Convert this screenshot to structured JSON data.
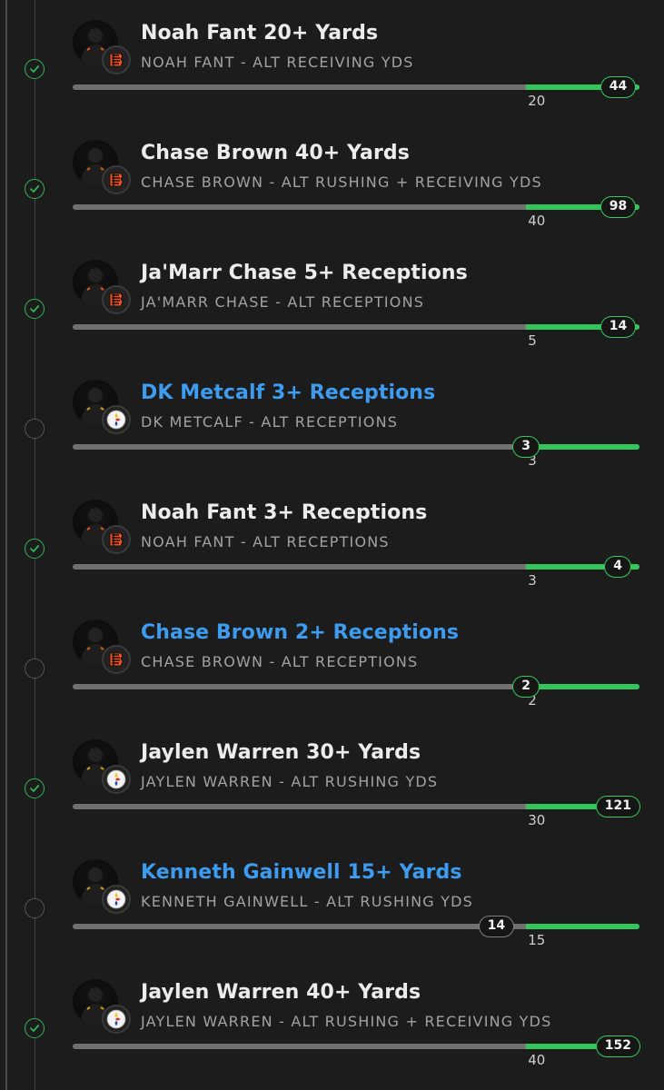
{
  "colors": {
    "won": "#2fb552",
    "pending_title": "#3d9bf0",
    "progress": "#32c55a",
    "track": "#707070"
  },
  "legs": [
    {
      "title": "Noah Fant 20+ Yards",
      "subtitle": "NOAH FANT - ALT RECEIVING YDS",
      "team": "bengals",
      "status": "won",
      "target": "20",
      "actual": "44",
      "title_style": "settled",
      "badge_pos": 0.962,
      "target_pos": 0.8
    },
    {
      "title": "Chase Brown 40+ Yards",
      "subtitle": "CHASE BROWN - ALT RUSHING + RECEIVING YDS",
      "team": "bengals",
      "status": "won",
      "target": "40",
      "actual": "98",
      "title_style": "settled",
      "badge_pos": 0.962,
      "target_pos": 0.8
    },
    {
      "title": "Ja'Marr Chase 5+ Receptions",
      "subtitle": "JA'MARR CHASE - ALT RECEPTIONS",
      "team": "bengals",
      "status": "won",
      "target": "5",
      "actual": "14",
      "title_style": "settled",
      "badge_pos": 0.962,
      "target_pos": 0.8
    },
    {
      "title": "DK Metcalf 3+ Receptions",
      "subtitle": "DK METCALF - ALT RECEPTIONS",
      "team": "steelers",
      "status": "open",
      "target": "3",
      "actual": "3",
      "title_style": "pending",
      "badge_pos": 0.8,
      "target_pos": 0.8
    },
    {
      "title": "Noah Fant 3+ Receptions",
      "subtitle": "NOAH FANT - ALT RECEPTIONS",
      "team": "bengals",
      "status": "won",
      "target": "3",
      "actual": "4",
      "title_style": "settled",
      "badge_pos": 0.962,
      "target_pos": 0.8
    },
    {
      "title": "Chase Brown 2+ Receptions",
      "subtitle": "CHASE BROWN - ALT RECEPTIONS",
      "team": "bengals",
      "status": "open",
      "target": "2",
      "actual": "2",
      "title_style": "pending",
      "badge_pos": 0.8,
      "target_pos": 0.8
    },
    {
      "title": "Jaylen Warren 30+ Yards",
      "subtitle": "JAYLEN WARREN - ALT RUSHING YDS",
      "team": "steelers",
      "status": "won",
      "target": "30",
      "actual": "121",
      "title_style": "settled",
      "badge_pos": 0.962,
      "target_pos": 0.8
    },
    {
      "title": "Kenneth Gainwell 15+ Yards",
      "subtitle": "KENNETH GAINWELL - ALT RUSHING YDS",
      "team": "steelers",
      "status": "open",
      "target": "15",
      "actual": "14",
      "title_style": "pending",
      "badge_pos": 0.747,
      "target_pos": 0.8
    },
    {
      "title": "Jaylen Warren 40+ Yards",
      "subtitle": "JAYLEN WARREN - ALT RUSHING + RECEIVING YDS",
      "team": "steelers",
      "status": "won",
      "target": "40",
      "actual": "152",
      "title_style": "settled",
      "badge_pos": 0.962,
      "target_pos": 0.8
    }
  ]
}
